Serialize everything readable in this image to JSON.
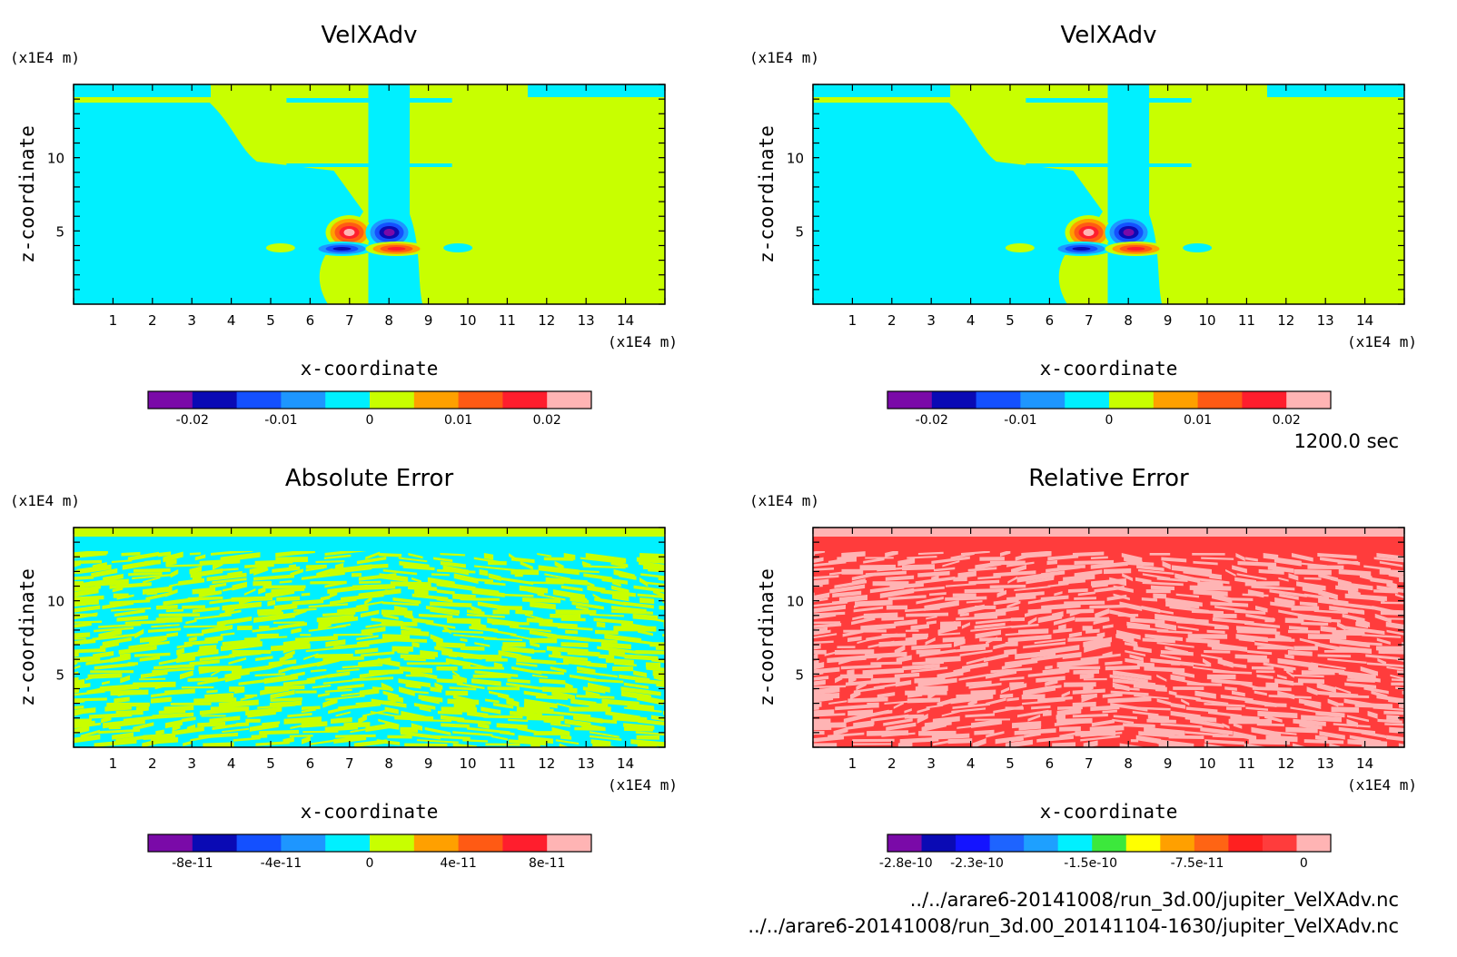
{
  "footer": {
    "time": "1200.0 sec",
    "file1": "../../arare6-20141008/run_3d.00/jupiter_VelXAdv.nc",
    "file2": "../../arare6-20141008/run_3d.00_20141104-1630/jupiter_VelXAdv.nc"
  },
  "chart_data": [
    {
      "type": "heatmap",
      "title": "VelXAdv",
      "xlabel": "x-coordinate",
      "ylabel": "z-coordinate",
      "xunit": "(x1E4 m)",
      "yunit": "(x1E4 m)",
      "xlim": [
        0,
        15
      ],
      "ylim": [
        0,
        15
      ],
      "xticks": [
        "1",
        "2",
        "3",
        "4",
        "5",
        "6",
        "7",
        "8",
        "9",
        "10",
        "11",
        "12",
        "13",
        "14"
      ],
      "yticks": [
        "5",
        "10"
      ],
      "pattern": "field",
      "colorbar": {
        "colors": [
          "#7a0aa8",
          "#0a0ab4",
          "#1450ff",
          "#1e96ff",
          "#00f0ff",
          "#c8ff00",
          "#ffa000",
          "#ff5a14",
          "#ff1e2d",
          "#ffb4b4"
        ],
        "ticks": [
          {
            "value": -0.02,
            "label": "-0.02"
          },
          {
            "value": -0.01,
            "label": "-0.01"
          },
          {
            "value": 0,
            "label": "0"
          },
          {
            "value": 0.01,
            "label": "0.01"
          },
          {
            "value": 0.02,
            "label": "0.02"
          }
        ],
        "range": [
          -0.025,
          0.025
        ]
      }
    },
    {
      "type": "heatmap",
      "title": "VelXAdv",
      "xlabel": "x-coordinate",
      "ylabel": "z-coordinate",
      "xunit": "(x1E4 m)",
      "yunit": "(x1E4 m)",
      "xlim": [
        0,
        15
      ],
      "ylim": [
        0,
        15
      ],
      "xticks": [
        "1",
        "2",
        "3",
        "4",
        "5",
        "6",
        "7",
        "8",
        "9",
        "10",
        "11",
        "12",
        "13",
        "14"
      ],
      "yticks": [
        "5",
        "10"
      ],
      "pattern": "field",
      "colorbar": {
        "colors": [
          "#7a0aa8",
          "#0a0ab4",
          "#1450ff",
          "#1e96ff",
          "#00f0ff",
          "#c8ff00",
          "#ffa000",
          "#ff5a14",
          "#ff1e2d",
          "#ffb4b4"
        ],
        "ticks": [
          {
            "value": -0.02,
            "label": "-0.02"
          },
          {
            "value": -0.01,
            "label": "-0.01"
          },
          {
            "value": 0,
            "label": "0"
          },
          {
            "value": 0.01,
            "label": "0.01"
          },
          {
            "value": 0.02,
            "label": "0.02"
          }
        ],
        "range": [
          -0.025,
          0.025
        ]
      }
    },
    {
      "type": "heatmap",
      "title": "Absolute Error",
      "xlabel": "x-coordinate",
      "ylabel": "z-coordinate",
      "xunit": "(x1E4 m)",
      "yunit": "(x1E4 m)",
      "xlim": [
        0,
        15
      ],
      "ylim": [
        0,
        15
      ],
      "xticks": [
        "1",
        "2",
        "3",
        "4",
        "5",
        "6",
        "7",
        "8",
        "9",
        "10",
        "11",
        "12",
        "13",
        "14"
      ],
      "yticks": [
        "5",
        "10"
      ],
      "pattern": "abs-noise",
      "colors_used": [
        "#00f0ff",
        "#c8ff00"
      ],
      "colorbar": {
        "colors": [
          "#7a0aa8",
          "#0a0ab4",
          "#1450ff",
          "#1e96ff",
          "#00f0ff",
          "#c8ff00",
          "#ffa000",
          "#ff5a14",
          "#ff1e2d",
          "#ffb4b4"
        ],
        "ticks": [
          {
            "value": -8e-11,
            "label": "-8e-11"
          },
          {
            "value": -4e-11,
            "label": "-4e-11"
          },
          {
            "value": 0,
            "label": "0"
          },
          {
            "value": 4e-11,
            "label": "4e-11"
          },
          {
            "value": 8e-11,
            "label": "8e-11"
          }
        ],
        "range": [
          -1e-10,
          1e-10
        ]
      }
    },
    {
      "type": "heatmap",
      "title": "Relative Error",
      "xlabel": "x-coordinate",
      "ylabel": "z-coordinate",
      "xunit": "(x1E4 m)",
      "yunit": "(x1E4 m)",
      "xlim": [
        0,
        15
      ],
      "ylim": [
        0,
        15
      ],
      "xticks": [
        "1",
        "2",
        "3",
        "4",
        "5",
        "6",
        "7",
        "8",
        "9",
        "10",
        "11",
        "12",
        "13",
        "14"
      ],
      "yticks": [
        "5",
        "10"
      ],
      "pattern": "rel-noise",
      "colors_used": [
        "#ff3c3c",
        "#ffb4b4"
      ],
      "colorbar": {
        "colors": [
          "#7a0aa8",
          "#0a0ab4",
          "#1414ff",
          "#1e64ff",
          "#1ea0ff",
          "#00f0ff",
          "#3ce83c",
          "#ffff00",
          "#ffa000",
          "#ff6414",
          "#ff2020",
          "#ff3c3c",
          "#ffb4b4"
        ],
        "ticks": [
          {
            "value": -2.8e-10,
            "label": "-2.8e-10"
          },
          {
            "value": -2.3e-10,
            "label": "-2.3e-10"
          },
          {
            "value": -1.5e-10,
            "label": "-1.5e-10"
          },
          {
            "value": -7.5e-11,
            "label": "-7.5e-11"
          },
          {
            "value": 0,
            "label": "0"
          }
        ],
        "range": [
          -2.93e-10,
          1.9e-11
        ]
      }
    }
  ]
}
